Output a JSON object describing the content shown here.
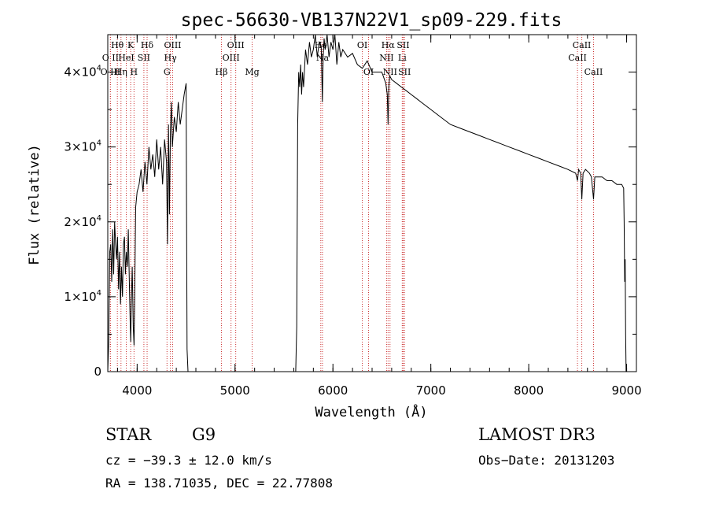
{
  "chart_data": {
    "type": "line",
    "title": "spec-56630-VB137N22V1_sp09-229.fits",
    "xlabel": "Wavelength (Å)",
    "ylabel": "Flux (relative)",
    "xlim": [
      3700,
      9100
    ],
    "ylim": [
      0,
      45000
    ],
    "xticks": [
      4000,
      5000,
      6000,
      7000,
      8000,
      9000
    ],
    "yticks": [
      {
        "value": 0,
        "mant": "0",
        "exp": ""
      },
      {
        "value": 10000,
        "mant": "1×10",
        "exp": "4"
      },
      {
        "value": 20000,
        "mant": "2×10",
        "exp": "4"
      },
      {
        "value": 30000,
        "mant": "3×10",
        "exp": "4"
      },
      {
        "value": 40000,
        "mant": "4×10",
        "exp": "4"
      }
    ],
    "spectrum": {
      "x": [
        3700,
        3710,
        3720,
        3730,
        3740,
        3750,
        3760,
        3770,
        3780,
        3790,
        3800,
        3810,
        3820,
        3830,
        3840,
        3850,
        3860,
        3870,
        3880,
        3890,
        3900,
        3910,
        3920,
        3930,
        3935,
        3940,
        3950,
        3960,
        3968,
        3975,
        3985,
        4000,
        4020,
        4040,
        4060,
        4080,
        4100,
        4120,
        4140,
        4160,
        4180,
        4200,
        4220,
        4240,
        4260,
        4280,
        4300,
        4310,
        4320,
        4330,
        4340,
        4350,
        4360,
        4380,
        4400,
        4420,
        4440,
        4460,
        4480,
        4500,
        4505,
        4510,
        4520,
        5620,
        5630,
        5640,
        5650,
        5660,
        5670,
        5680,
        5690,
        5700,
        5720,
        5740,
        5760,
        5780,
        5800,
        5820,
        5840,
        5860,
        5880,
        5892,
        5900,
        5910,
        5920,
        5940,
        5960,
        5980,
        6000,
        6020,
        6040,
        6060,
        6080,
        6100,
        6150,
        6200,
        6250,
        6300,
        6350,
        6400,
        6450,
        6500,
        6540,
        6555,
        6563,
        6570,
        6580,
        6600,
        6650,
        6700,
        6750,
        6800,
        6850,
        6900,
        7000,
        7100,
        7200,
        7300,
        7400,
        7500,
        7600,
        7700,
        7800,
        7900,
        8000,
        8100,
        8200,
        8300,
        8400,
        8480,
        8498,
        8510,
        8530,
        8542,
        8555,
        8580,
        8620,
        8640,
        8662,
        8675,
        8700,
        8750,
        8800,
        8850,
        8900,
        8950,
        8970,
        8975,
        8980,
        8985,
        8990,
        8995,
        9000
      ],
      "y": [
        0,
        4000,
        16000,
        17000,
        12000,
        19000,
        13000,
        20000,
        17000,
        15000,
        18000,
        11000,
        16000,
        9000,
        14000,
        10000,
        17000,
        18000,
        13000,
        16000,
        14000,
        19000,
        12000,
        6000,
        4000,
        9000,
        14000,
        6000,
        3500,
        10000,
        22000,
        24000,
        25000,
        27000,
        24000,
        28000,
        25000,
        30000,
        27000,
        29000,
        26000,
        31000,
        27000,
        30000,
        25000,
        31000,
        28000,
        17000,
        33000,
        21000,
        32000,
        36000,
        30000,
        34000,
        32000,
        36000,
        33000,
        35000,
        37000,
        38500,
        20000,
        3000,
        0,
        0,
        6000,
        33000,
        40000,
        38000,
        41000,
        37000,
        40000,
        38000,
        43000,
        41000,
        44000,
        42000,
        43000,
        45000,
        42000,
        44000,
        43500,
        36000,
        42000,
        44500,
        43000,
        45000,
        42000,
        44000,
        43000,
        45000,
        41000,
        44000,
        42000,
        43000,
        42000,
        42500,
        41000,
        40500,
        41500,
        40000,
        40000,
        40000,
        38500,
        37000,
        33000,
        38000,
        39500,
        39000,
        38500,
        38000,
        37500,
        37000,
        36500,
        36000,
        35000,
        34000,
        33000,
        32500,
        32000,
        31500,
        31000,
        30500,
        30000,
        29500,
        29000,
        28500,
        28000,
        27500,
        27000,
        26500,
        25500,
        27000,
        26500,
        23000,
        26500,
        27000,
        26500,
        26000,
        23000,
        26000,
        26000,
        26000,
        25500,
        25500,
        25000,
        25000,
        24500,
        20000,
        12000,
        15000,
        5000,
        0,
        0
      ]
    },
    "lines": [
      {
        "label": "Hθ",
        "x": 3798,
        "row": 0
      },
      {
        "label": "O II",
        "x": 3727,
        "row": 1
      },
      {
        "label": "O III",
        "x": 3727,
        "row": 2
      },
      {
        "label": "K",
        "x": 3934,
        "row": 0
      },
      {
        "label": "HeI",
        "x": 3889,
        "row": 1
      },
      {
        "label": "Hη",
        "x": 3835,
        "row": 2
      },
      {
        "label": "Hδ",
        "x": 4102,
        "row": 0
      },
      {
        "label": "SII",
        "x": 4069,
        "row": 1
      },
      {
        "label": "H",
        "x": 3968,
        "row": 2
      },
      {
        "label": "OIII",
        "x": 4363,
        "row": 0
      },
      {
        "label": "Hγ",
        "x": 4340,
        "row": 1
      },
      {
        "label": "G",
        "x": 4305,
        "row": 2
      },
      {
        "label": "OIII",
        "x": 5007,
        "row": 0
      },
      {
        "label": "OIII",
        "x": 4959,
        "row": 1
      },
      {
        "label": "Hβ",
        "x": 4861,
        "row": 2
      },
      {
        "label": "Mg",
        "x": 5175,
        "row": 2
      },
      {
        "label": "He",
        "x": 5876,
        "row": 0
      },
      {
        "label": "Na",
        "x": 5893,
        "row": 1
      },
      {
        "label": "OI",
        "x": 6300,
        "row": 0
      },
      {
        "label": "OI",
        "x": 6364,
        "row": 2
      },
      {
        "label": "Hα",
        "x": 6563,
        "row": 0
      },
      {
        "label": "NII",
        "x": 6548,
        "row": 1
      },
      {
        "label": "NII",
        "x": 6583,
        "row": 2
      },
      {
        "label": "SII",
        "x": 6717,
        "row": 0
      },
      {
        "label": "Li",
        "x": 6708,
        "row": 1
      },
      {
        "label": "SII",
        "x": 6731,
        "row": 2
      },
      {
        "label": "CaII",
        "x": 8542,
        "row": 0
      },
      {
        "label": "CaII",
        "x": 8498,
        "row": 1
      },
      {
        "label": "CaII",
        "x": 8662,
        "row": 2
      }
    ]
  },
  "info": {
    "object_class": "STAR",
    "subclass": "G9",
    "survey": "LAMOST DR3",
    "redshift": "cz = −39.3 ± 12.0 km/s",
    "obs_date": "Obs−Date: 20131203",
    "coords": "RA = 138.71035, DEC =  22.77808"
  }
}
